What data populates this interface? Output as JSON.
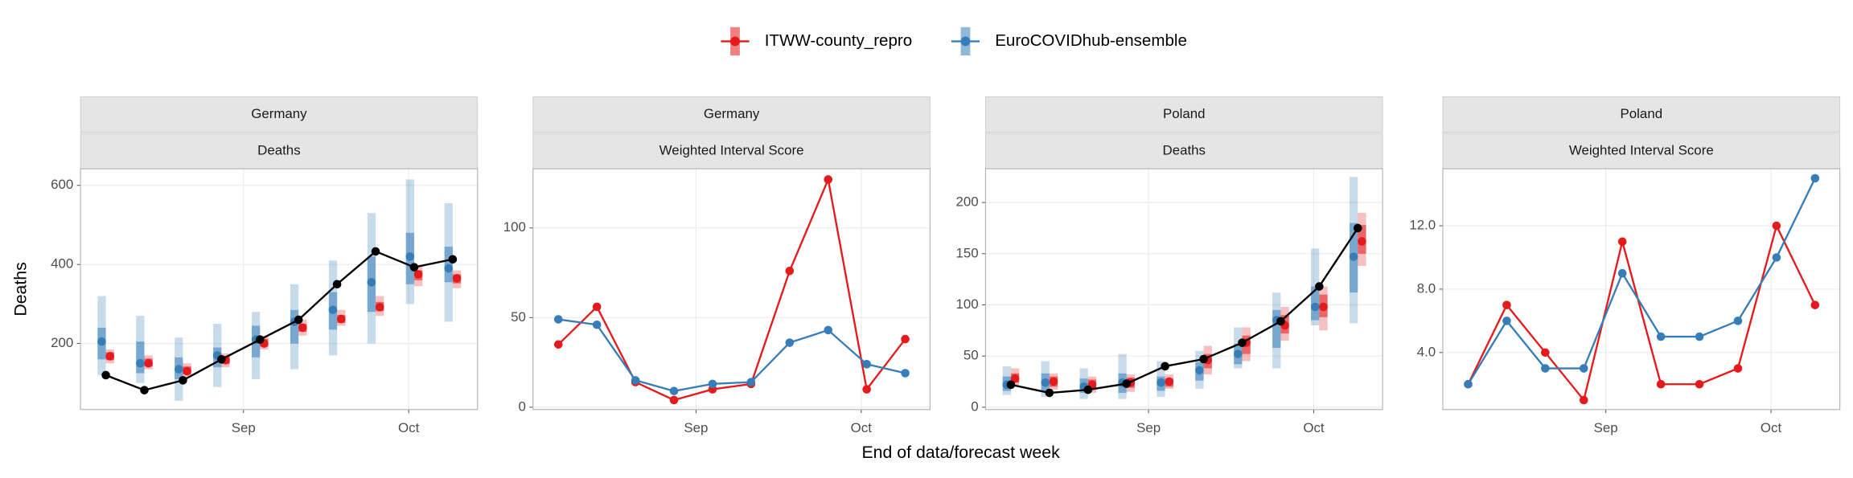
{
  "chart_data": [
    {
      "type": "line",
      "title": "Germany",
      "subtitle": "Deaths",
      "y_label": "Deaths",
      "x_label": "End of data/forecast week",
      "x": [
        -25,
        -18,
        -11,
        -4,
        3,
        10,
        17,
        24,
        31,
        38
      ],
      "xlim": [
        -29.6,
        42.5
      ],
      "xticks": [
        {
          "value": 0,
          "label": "Sep"
        },
        {
          "value": 30,
          "label": "Oct"
        }
      ],
      "ylim": [
        33,
        642
      ],
      "yticks": [
        200,
        400,
        600
      ],
      "grid": true,
      "observed": {
        "color": "#000000",
        "values": [
          120,
          82,
          107,
          160,
          210,
          260,
          350,
          433,
          393,
          413
        ]
      },
      "series": [
        {
          "name": "ITWW-county_repro",
          "color": "#e41a1c",
          "values": [
            168,
            150,
            130,
            158,
            200,
            240,
            262,
            292,
            375,
            365
          ],
          "lower95": [
            150,
            135,
            115,
            140,
            185,
            220,
            245,
            270,
            345,
            340
          ],
          "upper95": [
            185,
            170,
            150,
            175,
            220,
            260,
            285,
            320,
            395,
            385
          ],
          "lower50": [
            158,
            142,
            122,
            148,
            192,
            230,
            252,
            282,
            360,
            352
          ],
          "upper50": [
            178,
            162,
            142,
            168,
            212,
            250,
            272,
            305,
            385,
            375
          ]
        },
        {
          "name": "EuroCOVIDhub-ensemble",
          "color": "#377eb8",
          "values": [
            205,
            150,
            135,
            170,
            210,
            255,
            285,
            355,
            420,
            390
          ],
          "lower95": [
            120,
            100,
            55,
            90,
            110,
            135,
            170,
            200,
            300,
            255
          ],
          "upper95": [
            320,
            270,
            215,
            250,
            280,
            350,
            410,
            530,
            615,
            555
          ],
          "lower50": [
            160,
            125,
            110,
            140,
            165,
            200,
            235,
            280,
            350,
            355
          ],
          "upper50": [
            240,
            205,
            165,
            190,
            245,
            285,
            330,
            420,
            480,
            445
          ]
        }
      ]
    },
    {
      "type": "line",
      "title": "Germany",
      "subtitle": "Weighted Interval Score",
      "x": [
        -25,
        -18,
        -11,
        -4,
        3,
        10,
        17,
        24,
        31,
        38
      ],
      "xlim": [
        -29.6,
        42.5
      ],
      "xticks": [
        {
          "value": 0,
          "label": "Sep"
        },
        {
          "value": 30,
          "label": "Oct"
        }
      ],
      "ylim": [
        -1.3,
        133
      ],
      "yticks": [
        0,
        50,
        100
      ],
      "grid": true,
      "series": [
        {
          "name": "ITWW-county_repro",
          "color": "#e41a1c",
          "values": [
            35,
            56,
            14,
            4,
            10,
            13,
            76,
            127,
            10,
            38
          ]
        },
        {
          "name": "EuroCOVIDhub-ensemble",
          "color": "#377eb8",
          "values": [
            49,
            46,
            15,
            9,
            13,
            14,
            36,
            43,
            24,
            19
          ]
        }
      ]
    },
    {
      "type": "line",
      "title": "Poland",
      "subtitle": "Deaths",
      "x": [
        -25,
        -18,
        -11,
        -4,
        3,
        10,
        17,
        24,
        31,
        38
      ],
      "xlim": [
        -29.6,
        42.5
      ],
      "xticks": [
        {
          "value": 0,
          "label": "Sep"
        },
        {
          "value": 30,
          "label": "Oct"
        }
      ],
      "ylim": [
        -2.3,
        233
      ],
      "yticks": [
        0,
        50,
        100,
        150,
        200
      ],
      "grid": true,
      "observed": {
        "color": "#000000",
        "values": [
          22,
          14,
          17,
          23,
          40,
          47,
          63,
          84,
          118,
          175
        ]
      },
      "series": [
        {
          "name": "ITWW-county_repro",
          "color": "#e41a1c",
          "values": [
            28,
            25,
            22,
            24,
            25,
            46,
            63,
            80,
            98,
            162
          ],
          "lower95": [
            20,
            17,
            14,
            15,
            18,
            32,
            45,
            65,
            75,
            138
          ],
          "upper95": [
            38,
            33,
            30,
            32,
            32,
            60,
            78,
            98,
            118,
            190
          ],
          "lower50": [
            24,
            20,
            18,
            19,
            20,
            38,
            52,
            72,
            88,
            150
          ],
          "upper50": [
            33,
            30,
            27,
            29,
            28,
            52,
            70,
            90,
            110,
            178
          ]
        },
        {
          "name": "EuroCOVIDhub-ensemble",
          "color": "#377eb8",
          "values": [
            22,
            24,
            20,
            24,
            24,
            36,
            52,
            85,
            98,
            147
          ],
          "lower95": [
            12,
            10,
            8,
            8,
            10,
            18,
            38,
            38,
            80,
            82
          ],
          "upper95": [
            40,
            45,
            38,
            52,
            45,
            55,
            78,
            112,
            155,
            225
          ],
          "lower50": [
            16,
            16,
            14,
            14,
            16,
            26,
            42,
            58,
            85,
            112
          ],
          "upper50": [
            30,
            33,
            28,
            33,
            30,
            44,
            62,
            95,
            118,
            180
          ]
        }
      ]
    },
    {
      "type": "line",
      "title": "Poland",
      "subtitle": "Weighted Interval Score",
      "x": [
        -25,
        -18,
        -11,
        -4,
        3,
        10,
        17,
        24,
        31,
        38
      ],
      "xlim": [
        -29.6,
        42.5
      ],
      "xticks": [
        {
          "value": 0,
          "label": "Sep"
        },
        {
          "value": 30,
          "label": "Oct"
        }
      ],
      "ylim": [
        0.4,
        15.6
      ],
      "yticks": [
        {
          "value": 4,
          "label": "4.0"
        },
        {
          "value": 8,
          "label": "8.0"
        },
        {
          "value": 12,
          "label": "12.0"
        }
      ],
      "grid": true,
      "series": [
        {
          "name": "ITWW-county_repro",
          "color": "#e41a1c",
          "values": [
            2,
            7,
            4,
            1,
            11,
            2,
            2,
            3,
            12,
            7
          ]
        },
        {
          "name": "EuroCOVIDhub-ensemble",
          "color": "#377eb8",
          "values": [
            2,
            6,
            3,
            3,
            9,
            5,
            5,
            6,
            10,
            15
          ]
        }
      ]
    }
  ]
}
